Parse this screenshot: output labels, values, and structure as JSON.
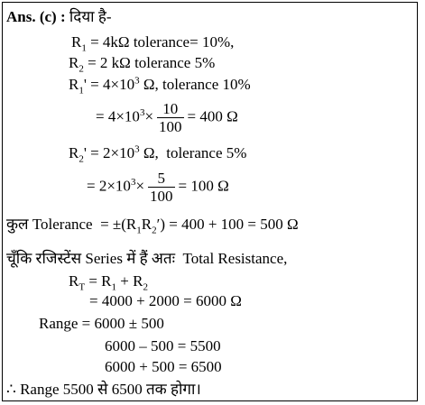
{
  "lines": [
    [
      "Ans. (c) :",
      " दिया है-"
    ],
    [
      "R",
      "1",
      " = 4kΩ tolerance= 10%,"
    ],
    [
      "R",
      "2",
      " = 2 kΩ tolerance 5%"
    ],
    [
      "R",
      "1",
      "' = 4×10",
      "3",
      " Ω, tolerance 10%"
    ],
    [
      "= 4×10",
      "3",
      "×",
      "10",
      "100",
      "= 400 Ω"
    ],
    [
      "R",
      "2",
      "' = 2×10",
      "3",
      " Ω,  tolerance 5%"
    ],
    [
      "= 2×10",
      "3",
      "×",
      "5",
      "100",
      "= 100 Ω"
    ],
    [
      "कुल Tolerance  = ±(R",
      "1",
      "R",
      "2",
      "′) = 400 + 100 = 500 Ω"
    ],
    [
      "चूँकि रजिस्टेंस Series में हैं अतः  Total Resistance,"
    ],
    [
      "R",
      "T",
      " = R",
      "1",
      " + R",
      "2"
    ],
    [
      "= 4000 + 2000 = 6000 Ω"
    ],
    [
      "Range = 6000 ± 500"
    ],
    [
      "6000 – 500 = 5500"
    ],
    [
      "6000 + 500 = 6500"
    ],
    [
      "∴ Range 5500 से 6500 तक होगा।"
    ]
  ]
}
